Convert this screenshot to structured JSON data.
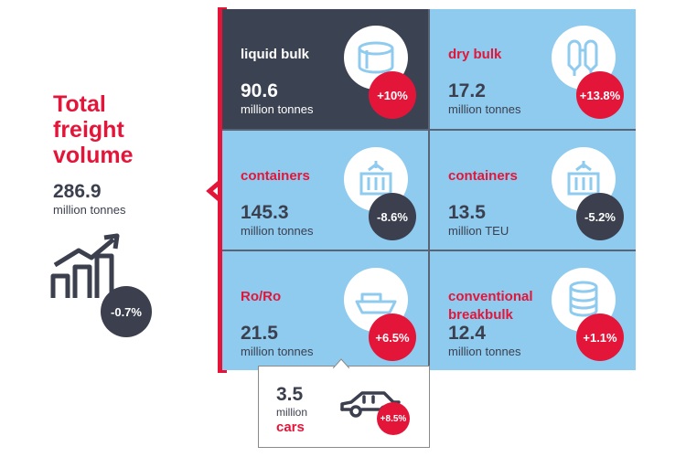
{
  "total": {
    "title_lines": [
      "Total",
      "freight",
      "volume"
    ],
    "value": "286.9",
    "unit": "million tonnes",
    "change": "-0.7%",
    "icon": "rising-bar-chart-icon"
  },
  "cells": [
    {
      "category": "liquid bulk",
      "value": "90.6",
      "unit": "million tonnes",
      "change": "+10%",
      "icon": "tank-icon"
    },
    {
      "category": "dry bulk",
      "value": "17.2",
      "unit": "million tonnes",
      "change": "+13.8%",
      "icon": "silo-icon"
    },
    {
      "category": "containers",
      "value": "145.3",
      "unit": "million tonnes",
      "change": "-8.6%",
      "icon": "container-crane-icon"
    },
    {
      "category": "containers",
      "value": "13.5",
      "unit": "million TEU",
      "change": "-5.2%",
      "icon": "container-crane-icon"
    },
    {
      "category": "Ro/Ro",
      "value": "21.5",
      "unit": "million tonnes",
      "change": "+6.5%",
      "icon": "ship-icon"
    },
    {
      "category_lines": [
        "conventional",
        "breakbulk"
      ],
      "value": "12.4",
      "unit": "million tonnes",
      "change": "+1.1%",
      "icon": "paper-roll-icon"
    }
  ],
  "cars": {
    "value": "3.5",
    "unit": "million",
    "category": "cars",
    "change": "+8.5%",
    "icon": "car-icon"
  },
  "colors": {
    "accent_red": "#e3163a",
    "dark": "#3b4252",
    "light_blue": "#8ecbef"
  }
}
